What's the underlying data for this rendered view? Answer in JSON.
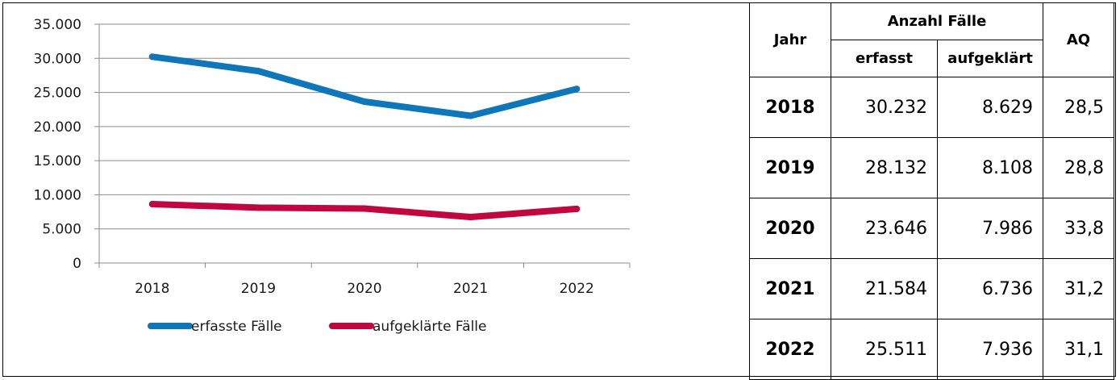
{
  "chart_data": {
    "type": "line",
    "categories": [
      "2018",
      "2019",
      "2020",
      "2021",
      "2022"
    ],
    "series": [
      {
        "name": "erfasste Fälle",
        "values": [
          30232,
          28132,
          23646,
          21584,
          25511
        ],
        "color": "#0e76b9"
      },
      {
        "name": "aufgeklärte Fälle",
        "values": [
          8629,
          8108,
          7986,
          6736,
          7936
        ],
        "color": "#c0073f"
      }
    ],
    "ylim": [
      0,
      35000
    ],
    "yticks": [
      "0",
      "5.000",
      "10.000",
      "15.000",
      "20.000",
      "25.000",
      "30.000",
      "35.000"
    ],
    "grid": true,
    "legend": "bottom"
  },
  "table": {
    "header": {
      "year": "Jahr",
      "group": "Anzahl Fälle",
      "col_recorded": "erfasst",
      "col_solved": "aufgeklärt",
      "col_rate": "AQ"
    },
    "rows": [
      {
        "year": "2018",
        "recorded": "30.232",
        "solved": "8.629",
        "rate": "28,5"
      },
      {
        "year": "2019",
        "recorded": "28.132",
        "solved": "8.108",
        "rate": "28,8"
      },
      {
        "year": "2020",
        "recorded": "23.646",
        "solved": "7.986",
        "rate": "33,8"
      },
      {
        "year": "2021",
        "recorded": "21.584",
        "solved": "6.736",
        "rate": "31,2"
      },
      {
        "year": "2022",
        "recorded": "25.511",
        "solved": "7.936",
        "rate": "31,1"
      }
    ]
  }
}
